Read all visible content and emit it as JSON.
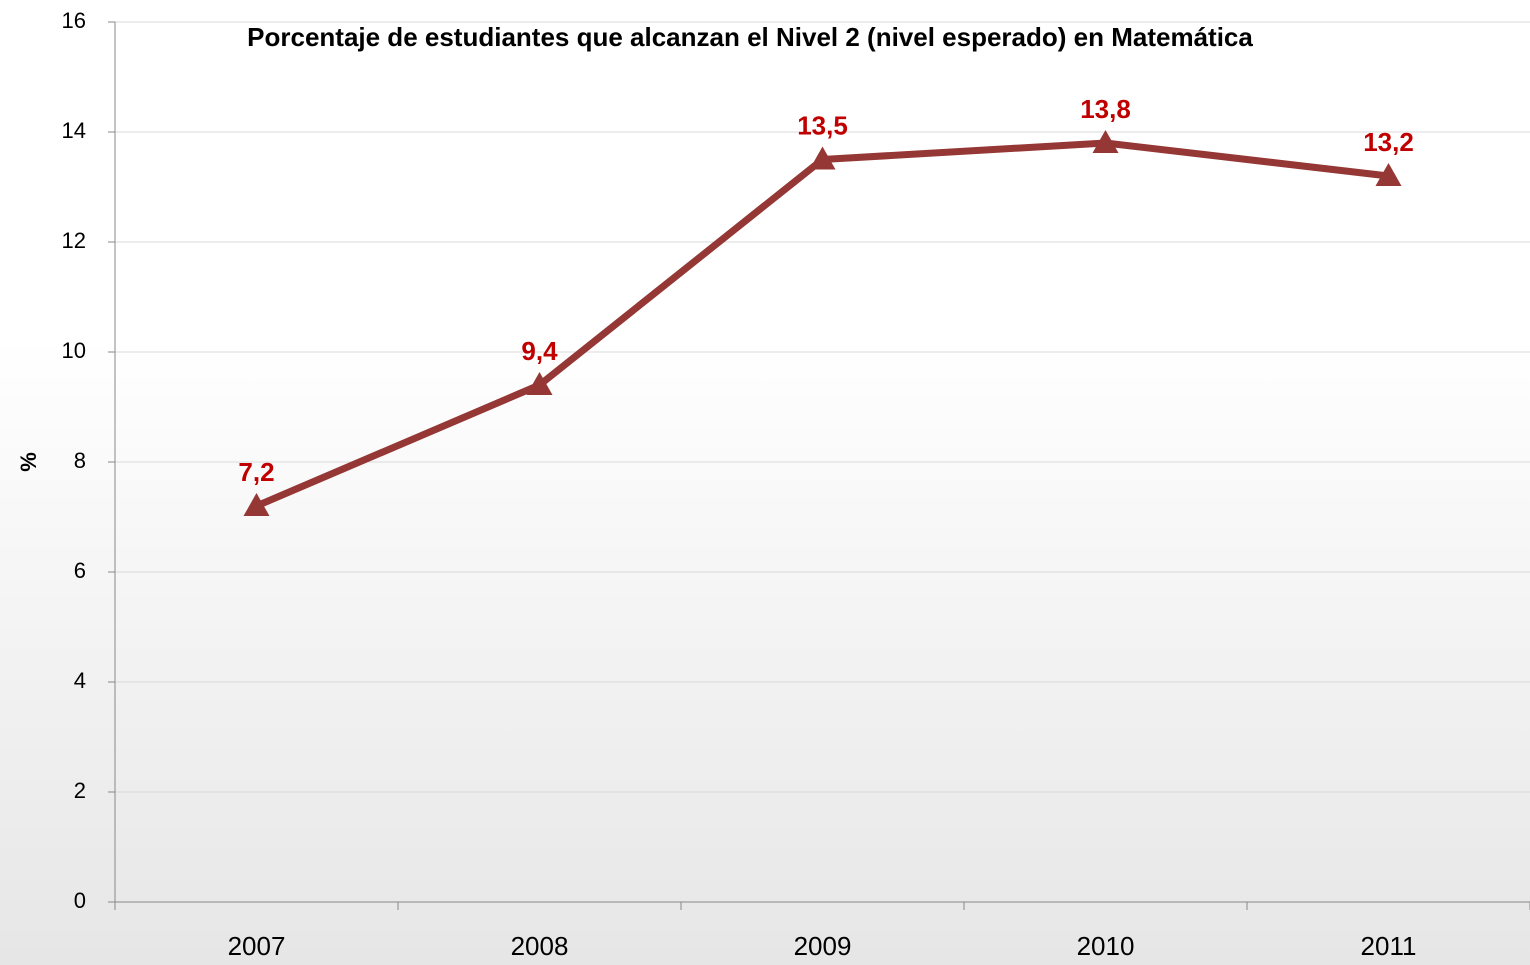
{
  "chart_data": {
    "type": "line",
    "title": "Porcentaje de estudiantes que alcanzan el Nivel 2 (nivel esperado) en Matemática",
    "ylabel": "%",
    "categories": [
      "2007",
      "2008",
      "2009",
      "2010",
      "2011"
    ],
    "series": [
      {
        "name": "Matemática",
        "color": "#953735",
        "values": [
          7.2,
          9.4,
          13.5,
          13.8,
          13.2
        ],
        "value_labels": [
          "7,2",
          "9,4",
          "13,5",
          "13,8",
          "13,2"
        ]
      }
    ],
    "value_label_color": "#c00000",
    "ylim": [
      0,
      16
    ],
    "yticks": [
      0,
      2,
      4,
      6,
      8,
      10,
      12,
      14,
      16
    ],
    "grid": true
  }
}
